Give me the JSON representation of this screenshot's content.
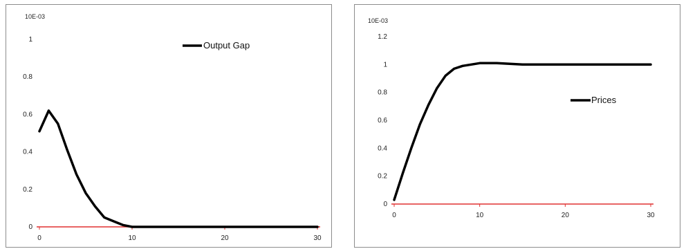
{
  "chart_data": [
    {
      "type": "line",
      "title": "",
      "xlabel": "",
      "ylabel": "",
      "axis_multiplier_label": "10E-03",
      "xlim": [
        0,
        30
      ],
      "ylim": [
        0,
        1
      ],
      "x_ticks": [
        "0",
        "10",
        "20",
        "30"
      ],
      "y_ticks": [
        "0",
        "0.2",
        "0.4",
        "0.6",
        "0.8",
        "1"
      ],
      "zero_axis_color": "#e03030",
      "grid": false,
      "legend_placement": "top-right",
      "series": [
        {
          "name": "Output Gap",
          "color": "#000000",
          "x": [
            0,
            1,
            2,
            3,
            4,
            5,
            6,
            7,
            8,
            9,
            10,
            12,
            15,
            20,
            25,
            30
          ],
          "y": [
            0.51,
            0.62,
            0.55,
            0.41,
            0.28,
            0.18,
            0.11,
            0.05,
            0.03,
            0.01,
            0.0,
            0.0,
            0.0,
            0.0,
            0.0,
            0.0
          ]
        }
      ]
    },
    {
      "type": "line",
      "title": "",
      "xlabel": "",
      "ylabel": "",
      "axis_multiplier_label": "10E-03",
      "xlim": [
        0,
        30
      ],
      "ylim": [
        0,
        1.2
      ],
      "x_ticks": [
        "0",
        "10",
        "20",
        "30"
      ],
      "y_ticks": [
        "0",
        "0.2",
        "0.4",
        "0.6",
        "0.8",
        "1",
        "1.2"
      ],
      "zero_axis_color": "#e03030",
      "grid": false,
      "legend_placement": "right",
      "series": [
        {
          "name": "Prices",
          "color": "#000000",
          "x": [
            0,
            1,
            2,
            3,
            4,
            5,
            6,
            7,
            8,
            9,
            10,
            12,
            15,
            20,
            25,
            30
          ],
          "y": [
            0.03,
            0.22,
            0.4,
            0.57,
            0.71,
            0.83,
            0.92,
            0.97,
            0.99,
            1.0,
            1.01,
            1.01,
            1.0,
            1.0,
            1.0,
            1.0
          ]
        }
      ]
    }
  ]
}
